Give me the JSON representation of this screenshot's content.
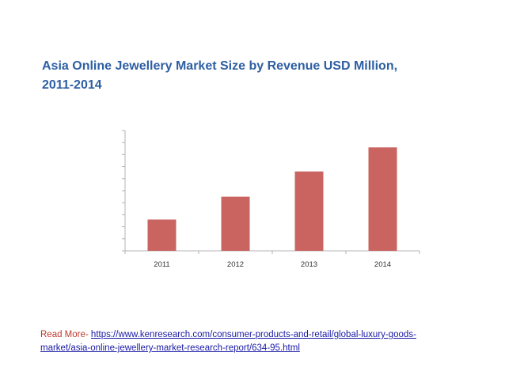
{
  "title_line1": "Asia Online Jewellery Market Size by Revenue USD Million,",
  "title_line2": "2011-2014",
  "read_more": {
    "label": "Read More-",
    "url_line1": "https://www.kenresearch.com/consumer-products-and-retail/global-luxury-goods-",
    "url_line2": "market/asia-online-jewellery-market-research-report/634-95.html"
  },
  "colors": {
    "title": "#2e5fa3",
    "bar": "#c96461",
    "axis": "#b3b3b3",
    "label": "#c0392b",
    "link": "#1a1aa6"
  },
  "chart_data": {
    "type": "bar",
    "title": "Asia Online Jewellery Market Size by Revenue USD Million, 2011-2014",
    "categories": [
      "2011",
      "2012",
      "2013",
      "2014"
    ],
    "values": [
      26,
      45,
      66,
      86
    ],
    "ylim": [
      0,
      100
    ],
    "y_tick_count": 10,
    "xlabel": "",
    "ylabel": "",
    "grid": false
  }
}
